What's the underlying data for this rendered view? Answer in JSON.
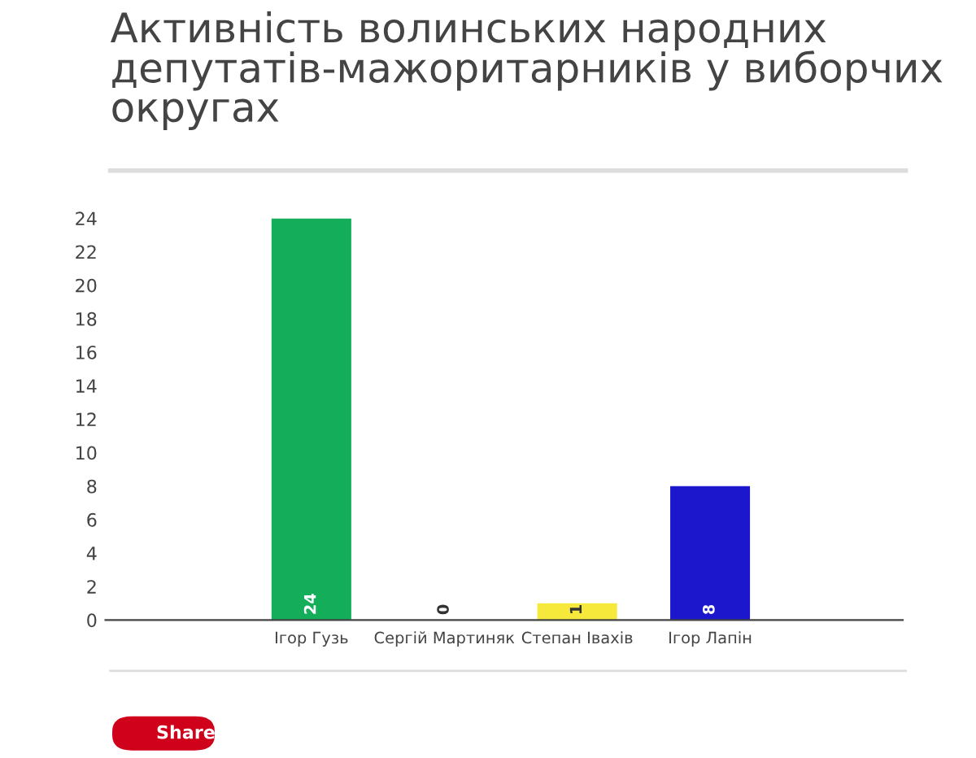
{
  "chart_data": {
    "type": "bar",
    "title": "Активність волинських народних депутатів-мажоритарників у виборчих округах",
    "categories": [
      "Ігор Гузь",
      "Сергій Мартиняк",
      "Степан Івахів",
      "Ігор Лапін"
    ],
    "values": [
      24,
      0,
      1,
      8
    ],
    "colors": [
      "#14ad5a",
      "#9e9e9e",
      "#f6e93c",
      "#1c17cc"
    ],
    "ylim": [
      0,
      24
    ],
    "yticks": [
      0,
      2,
      4,
      6,
      8,
      10,
      12,
      14,
      16,
      18,
      20,
      22,
      24
    ],
    "data_labels": true,
    "annotations": [
      "Share"
    ]
  }
}
